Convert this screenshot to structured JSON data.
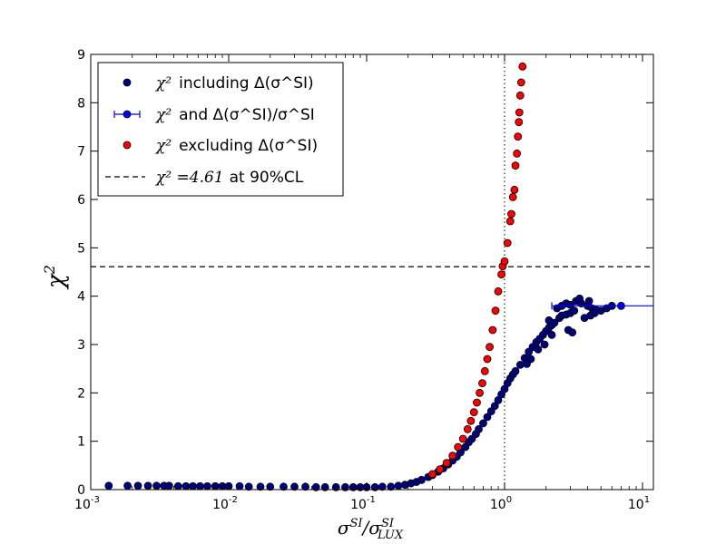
{
  "chart_data": {
    "type": "scatter",
    "title": "",
    "xlabel": "σ^SI / σ^SI_LUX",
    "ylabel": "χ²",
    "xscale": "log",
    "xlim": [
      0.001,
      12
    ],
    "ylim": [
      0,
      9
    ],
    "x_ticks": [
      {
        "value": 0.001,
        "base": "10",
        "exp": "-3"
      },
      {
        "value": 0.01,
        "base": "10",
        "exp": "-2"
      },
      {
        "value": 0.1,
        "base": "10",
        "exp": "-1"
      },
      {
        "value": 1,
        "base": "10",
        "exp": "0"
      },
      {
        "value": 10,
        "base": "10",
        "exp": "1"
      }
    ],
    "y_ticks": [
      "0",
      "1",
      "2",
      "3",
      "4",
      "5",
      "6",
      "7",
      "8",
      "9"
    ],
    "reference_lines": [
      {
        "orientation": "horizontal",
        "value": 4.61,
        "style": "dashed",
        "label": "χ² = 4.61 at 90%CL"
      },
      {
        "orientation": "vertical",
        "value": 1.0,
        "style": "dotted"
      }
    ],
    "legend": {
      "location": "upper-left",
      "entries": [
        {
          "series": "including",
          "math": "χ²",
          "text": "including Δ(σ^SI)"
        },
        {
          "series": "errorbar",
          "math": "χ²",
          "text": "and Δ(σ^SI)/σ^SI"
        },
        {
          "series": "excluding",
          "math": "χ²",
          "text": "excluding Δ(σ^SI)"
        },
        {
          "series": "threshold",
          "math": "χ² =4.61",
          "text": "at 90%CL"
        }
      ]
    },
    "series": [
      {
        "name": "χ² including Δ(σ^SI)",
        "color": "#00007f",
        "edge": "#000000",
        "points": [
          [
            0.00135,
            0.08
          ],
          [
            0.00185,
            0.08
          ],
          [
            0.0022,
            0.08
          ],
          [
            0.0026,
            0.08
          ],
          [
            0.003,
            0.08
          ],
          [
            0.0034,
            0.08
          ],
          [
            0.0037,
            0.08
          ],
          [
            0.0043,
            0.07
          ],
          [
            0.0049,
            0.07
          ],
          [
            0.0055,
            0.07
          ],
          [
            0.0062,
            0.07
          ],
          [
            0.007,
            0.07
          ],
          [
            0.008,
            0.07
          ],
          [
            0.009,
            0.07
          ],
          [
            0.01,
            0.07
          ],
          [
            0.012,
            0.07
          ],
          [
            0.014,
            0.06
          ],
          [
            0.017,
            0.06
          ],
          [
            0.02,
            0.06
          ],
          [
            0.025,
            0.06
          ],
          [
            0.03,
            0.06
          ],
          [
            0.036,
            0.06
          ],
          [
            0.043,
            0.05
          ],
          [
            0.05,
            0.05
          ],
          [
            0.06,
            0.05
          ],
          [
            0.07,
            0.05
          ],
          [
            0.08,
            0.05
          ],
          [
            0.09,
            0.05
          ],
          [
            0.1,
            0.05
          ],
          [
            0.115,
            0.05
          ],
          [
            0.13,
            0.06
          ],
          [
            0.15,
            0.06
          ],
          [
            0.17,
            0.08
          ],
          [
            0.19,
            0.1
          ],
          [
            0.21,
            0.13
          ],
          [
            0.23,
            0.16
          ],
          [
            0.25,
            0.2
          ],
          [
            0.28,
            0.26
          ],
          [
            0.3,
            0.3
          ],
          [
            0.33,
            0.37
          ],
          [
            0.36,
            0.44
          ],
          [
            0.39,
            0.52
          ],
          [
            0.42,
            0.6
          ],
          [
            0.45,
            0.68
          ],
          [
            0.48,
            0.77
          ],
          [
            0.52,
            0.88
          ],
          [
            0.55,
            0.98
          ],
          [
            0.58,
            1.05
          ],
          [
            0.62,
            1.15
          ],
          [
            0.65,
            1.25
          ],
          [
            0.7,
            1.37
          ],
          [
            0.75,
            1.5
          ],
          [
            0.8,
            1.62
          ],
          [
            0.85,
            1.73
          ],
          [
            0.9,
            1.85
          ],
          [
            0.95,
            1.97
          ],
          [
            1.0,
            2.08
          ],
          [
            1.05,
            2.2
          ],
          [
            1.1,
            2.3
          ],
          [
            1.15,
            2.38
          ],
          [
            1.2,
            2.45
          ],
          [
            1.3,
            2.58
          ],
          [
            1.4,
            2.72
          ],
          [
            1.5,
            2.85
          ],
          [
            1.6,
            2.95
          ],
          [
            1.7,
            3.05
          ],
          [
            1.8,
            3.12
          ],
          [
            1.9,
            3.2
          ],
          [
            2.0,
            3.28
          ],
          [
            2.1,
            3.35
          ],
          [
            2.2,
            3.4
          ],
          [
            2.3,
            3.45
          ],
          [
            2.1,
            3.5
          ],
          [
            2.5,
            3.55
          ],
          [
            2.6,
            3.6
          ],
          [
            2.8,
            3.62
          ],
          [
            3.0,
            3.65
          ],
          [
            3.2,
            3.7
          ],
          [
            2.4,
            3.75
          ],
          [
            2.6,
            3.8
          ],
          [
            2.8,
            3.85
          ],
          [
            3.0,
            3.82
          ],
          [
            3.3,
            3.9
          ],
          [
            3.6,
            3.85
          ],
          [
            4.0,
            3.8
          ],
          [
            4.3,
            3.75
          ],
          [
            4.6,
            3.72
          ],
          [
            5.0,
            3.7
          ],
          [
            5.5,
            3.75
          ],
          [
            6.0,
            3.8
          ],
          [
            3.5,
            3.95
          ],
          [
            4.1,
            3.9
          ],
          [
            4.5,
            3.65
          ],
          [
            3.8,
            3.55
          ],
          [
            4.2,
            3.6
          ],
          [
            2.9,
            3.3
          ],
          [
            3.1,
            3.25
          ],
          [
            2.2,
            3.2
          ],
          [
            1.95,
            3.0
          ],
          [
            1.75,
            2.9
          ],
          [
            1.55,
            2.7
          ],
          [
            1.45,
            2.6
          ]
        ]
      },
      {
        "name": "χ² excluding Δ(σ^SI)",
        "color": "#ff0000",
        "edge": "#000000",
        "points": [
          [
            0.3,
            0.32
          ],
          [
            0.34,
            0.42
          ],
          [
            0.38,
            0.55
          ],
          [
            0.42,
            0.7
          ],
          [
            0.46,
            0.88
          ],
          [
            0.5,
            1.05
          ],
          [
            0.54,
            1.25
          ],
          [
            0.57,
            1.42
          ],
          [
            0.6,
            1.6
          ],
          [
            0.63,
            1.8
          ],
          [
            0.66,
            2.0
          ],
          [
            0.69,
            2.2
          ],
          [
            0.72,
            2.45
          ],
          [
            0.75,
            2.7
          ],
          [
            0.78,
            2.95
          ],
          [
            0.82,
            3.3
          ],
          [
            0.86,
            3.7
          ],
          [
            0.9,
            4.1
          ],
          [
            0.95,
            4.45
          ],
          [
            0.97,
            4.62
          ],
          [
            1.0,
            4.72
          ],
          [
            1.05,
            5.1
          ],
          [
            1.1,
            5.55
          ],
          [
            1.12,
            5.7
          ],
          [
            1.15,
            6.05
          ],
          [
            1.18,
            6.2
          ],
          [
            1.2,
            6.7
          ],
          [
            1.23,
            6.95
          ],
          [
            1.25,
            7.3
          ],
          [
            1.27,
            7.6
          ],
          [
            1.28,
            7.8
          ],
          [
            1.3,
            8.15
          ],
          [
            1.32,
            8.42
          ],
          [
            1.35,
            8.75
          ]
        ]
      },
      {
        "name": "χ² and Δ(σ^SI)/σ^SI",
        "color": "#0000ff",
        "type": "errorbar",
        "points": [
          {
            "x": 7.0,
            "y": 3.8,
            "xerr_low": 2.2,
            "xerr_high": 12
          }
        ]
      }
    ]
  }
}
